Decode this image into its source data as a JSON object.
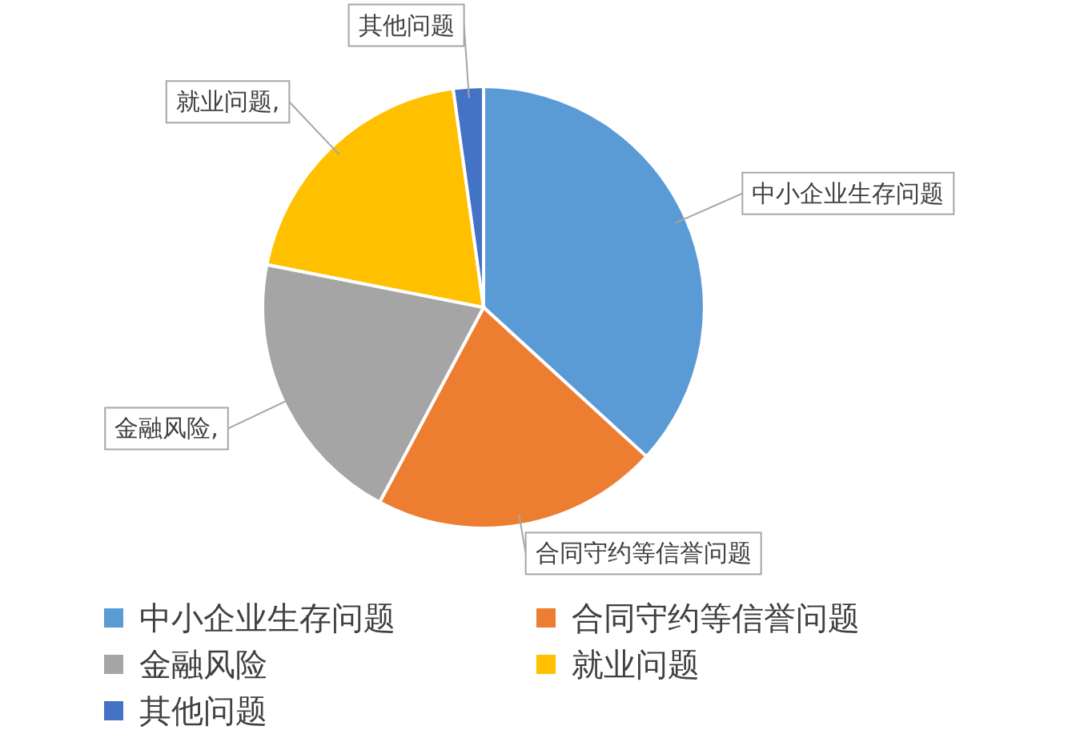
{
  "chart_data": {
    "type": "pie",
    "categories": [
      "中小企业生存问题",
      "合同守约等信誉问题",
      "金融风险",
      "就业问题",
      "其他问题"
    ],
    "values": [
      36.8,
      21,
      20.3,
      19.7,
      2.2
    ],
    "colors": [
      "#5b9bd5",
      "#ed7d31",
      "#a5a5a5",
      "#ffc000",
      "#4472c4"
    ],
    "value_labels": [
      "中小企业生存问题",
      "合同守约等信誉问题",
      "金融风险,",
      "就业问题,",
      "其他问题"
    ],
    "legend": "bottom"
  }
}
